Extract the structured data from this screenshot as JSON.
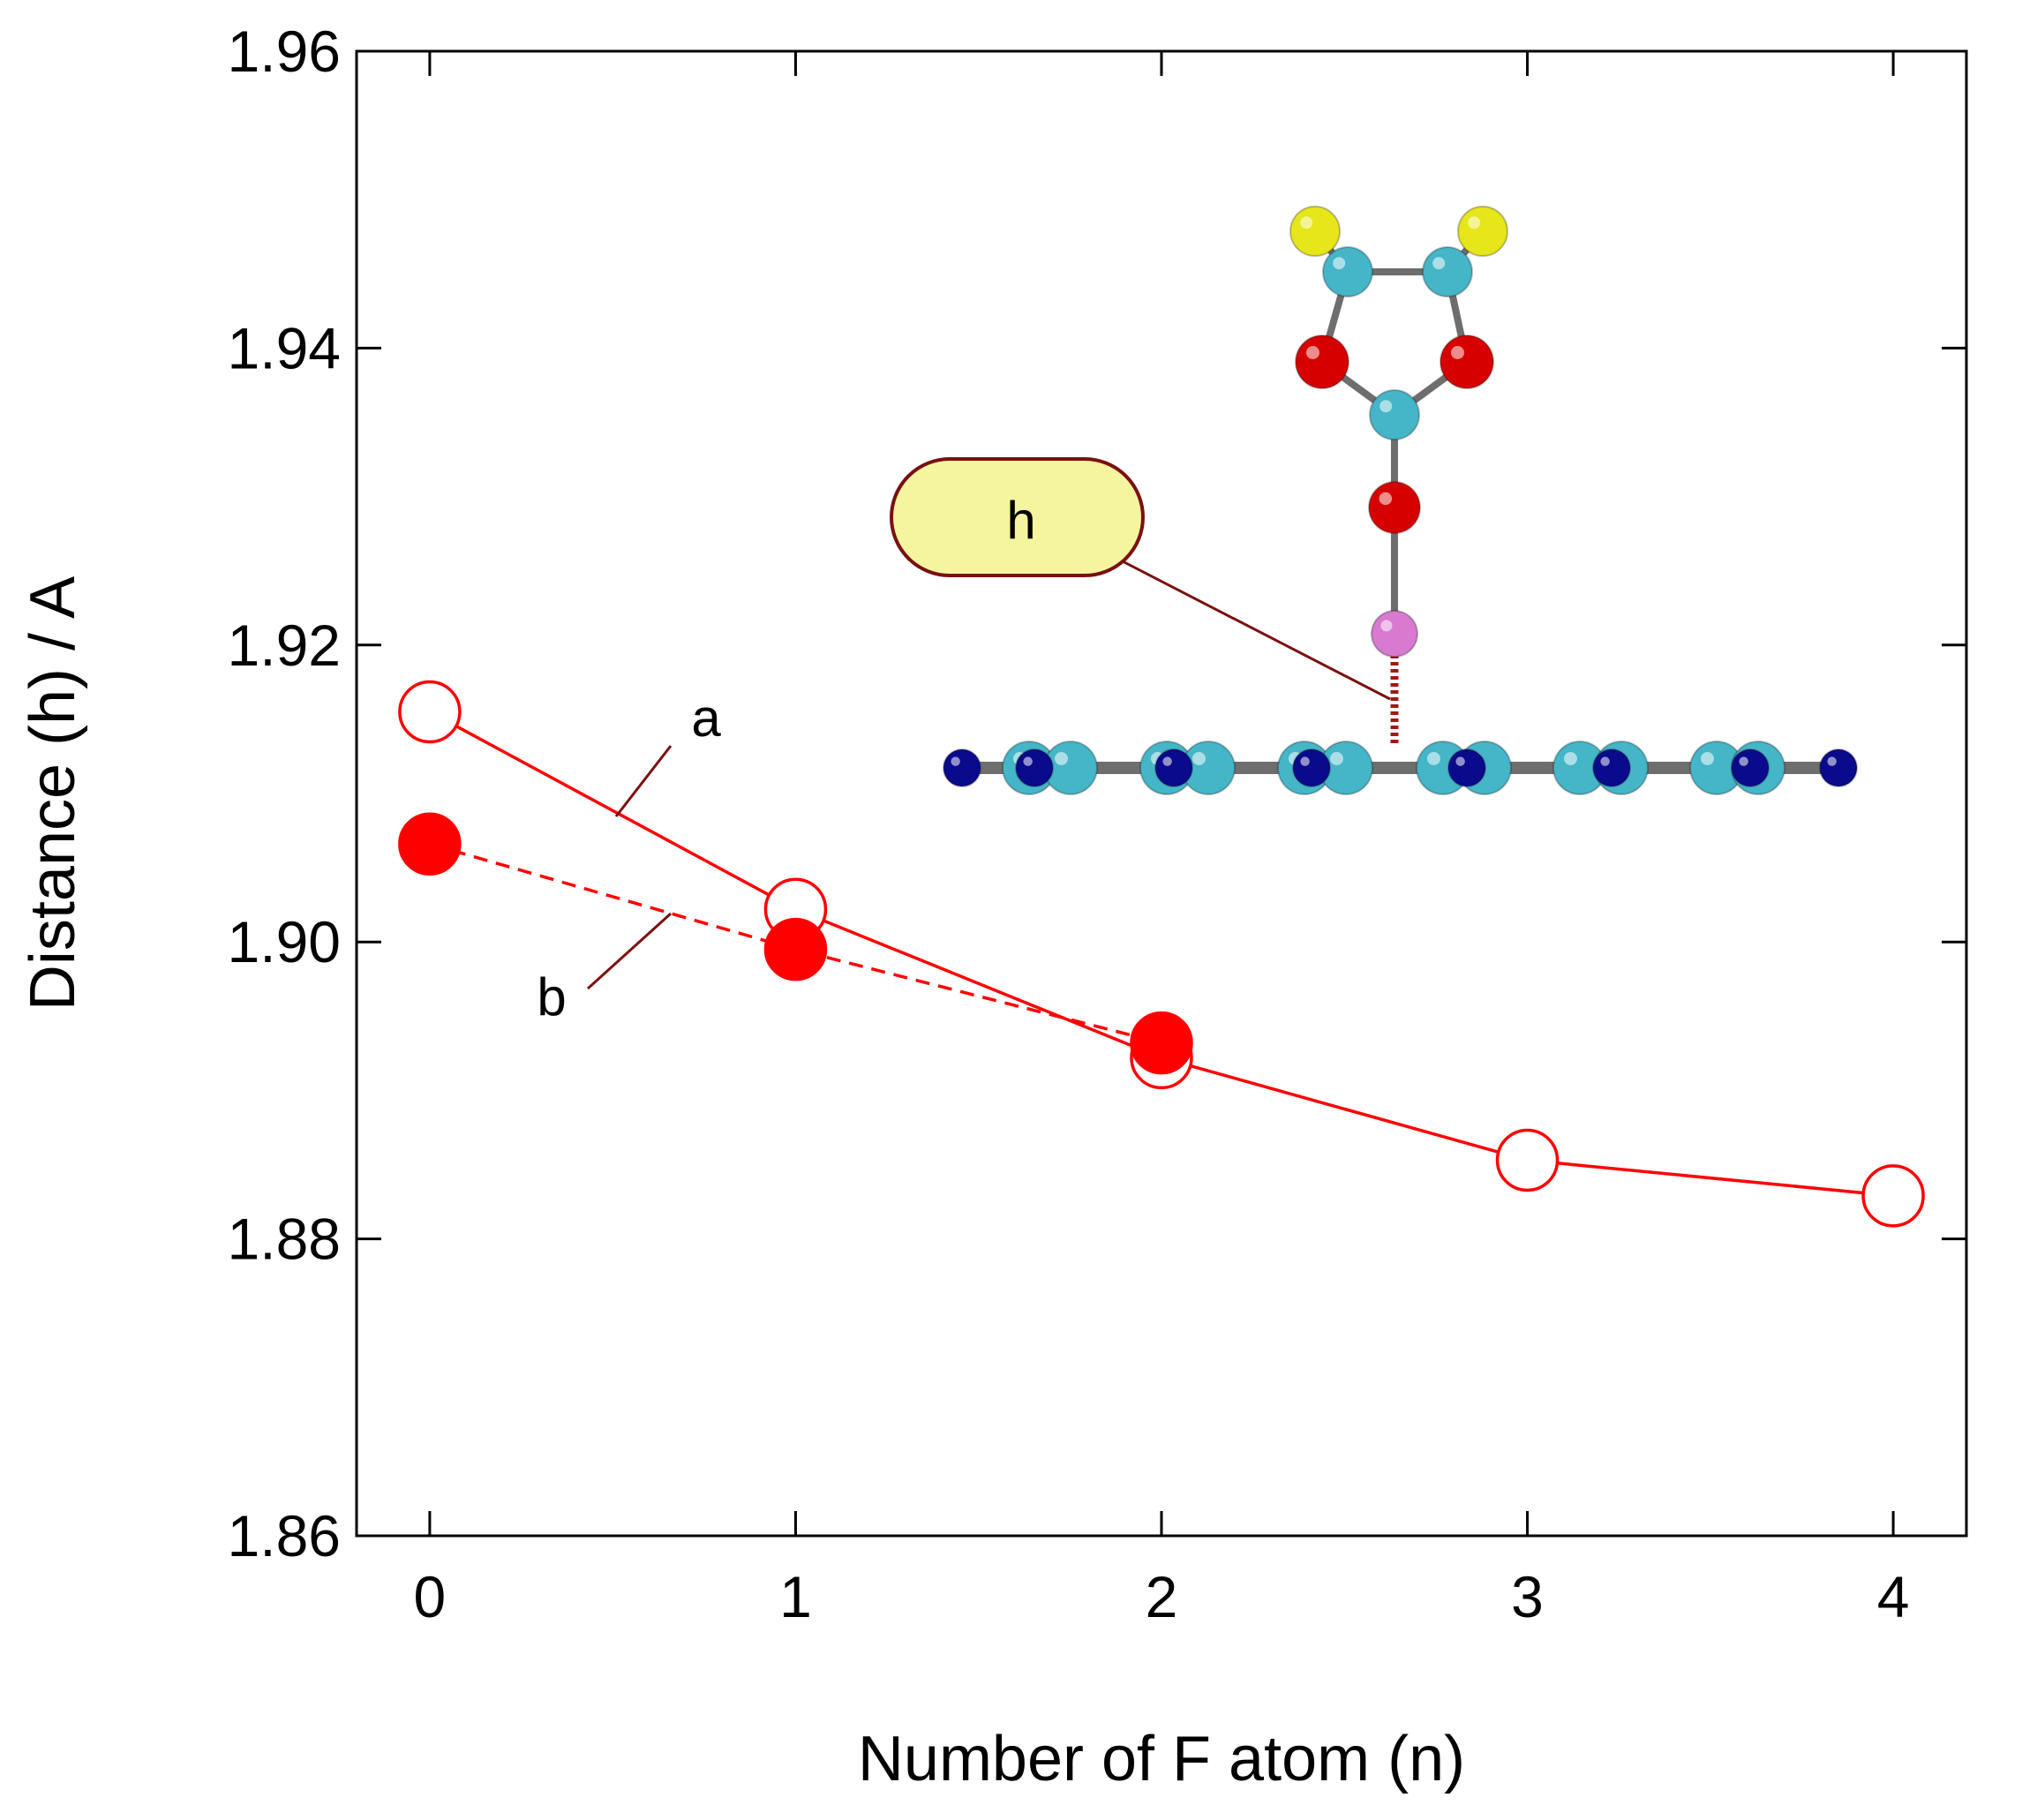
{
  "chart_data": {
    "type": "line",
    "title": "",
    "xlabel": "Number of F atom (n)",
    "ylabel": "Distance (h) / A",
    "xlim": [
      -0.2,
      4.2
    ],
    "ylim": [
      1.86,
      1.96
    ],
    "xticks": [
      0,
      1,
      2,
      3,
      4
    ],
    "xtick_labels": [
      "0",
      "1",
      "2",
      "3",
      "4"
    ],
    "yticks": [
      1.86,
      1.88,
      1.9,
      1.92,
      1.94,
      1.96
    ],
    "ytick_labels": [
      "1.86",
      "1.88",
      "1.90",
      "1.92",
      "1.94",
      "1.96"
    ],
    "grid": false,
    "series": [
      {
        "name": "a",
        "marker": "open-circle",
        "line": "solid",
        "color": "#ff0000",
        "x": [
          0,
          1,
          2,
          3,
          4
        ],
        "y": [
          1.9155,
          1.9022,
          1.8922,
          1.8853,
          1.8829
        ]
      },
      {
        "name": "b",
        "marker": "filled-circle",
        "line": "dashed",
        "color": "#ff0000",
        "x": [
          0,
          1,
          2
        ],
        "y": [
          1.9066,
          1.8995,
          1.8932
        ]
      }
    ],
    "annotations": [
      {
        "text": "h",
        "kind": "callout",
        "color": "#f5f5a0"
      }
    ],
    "inset": "molecular-structure"
  }
}
